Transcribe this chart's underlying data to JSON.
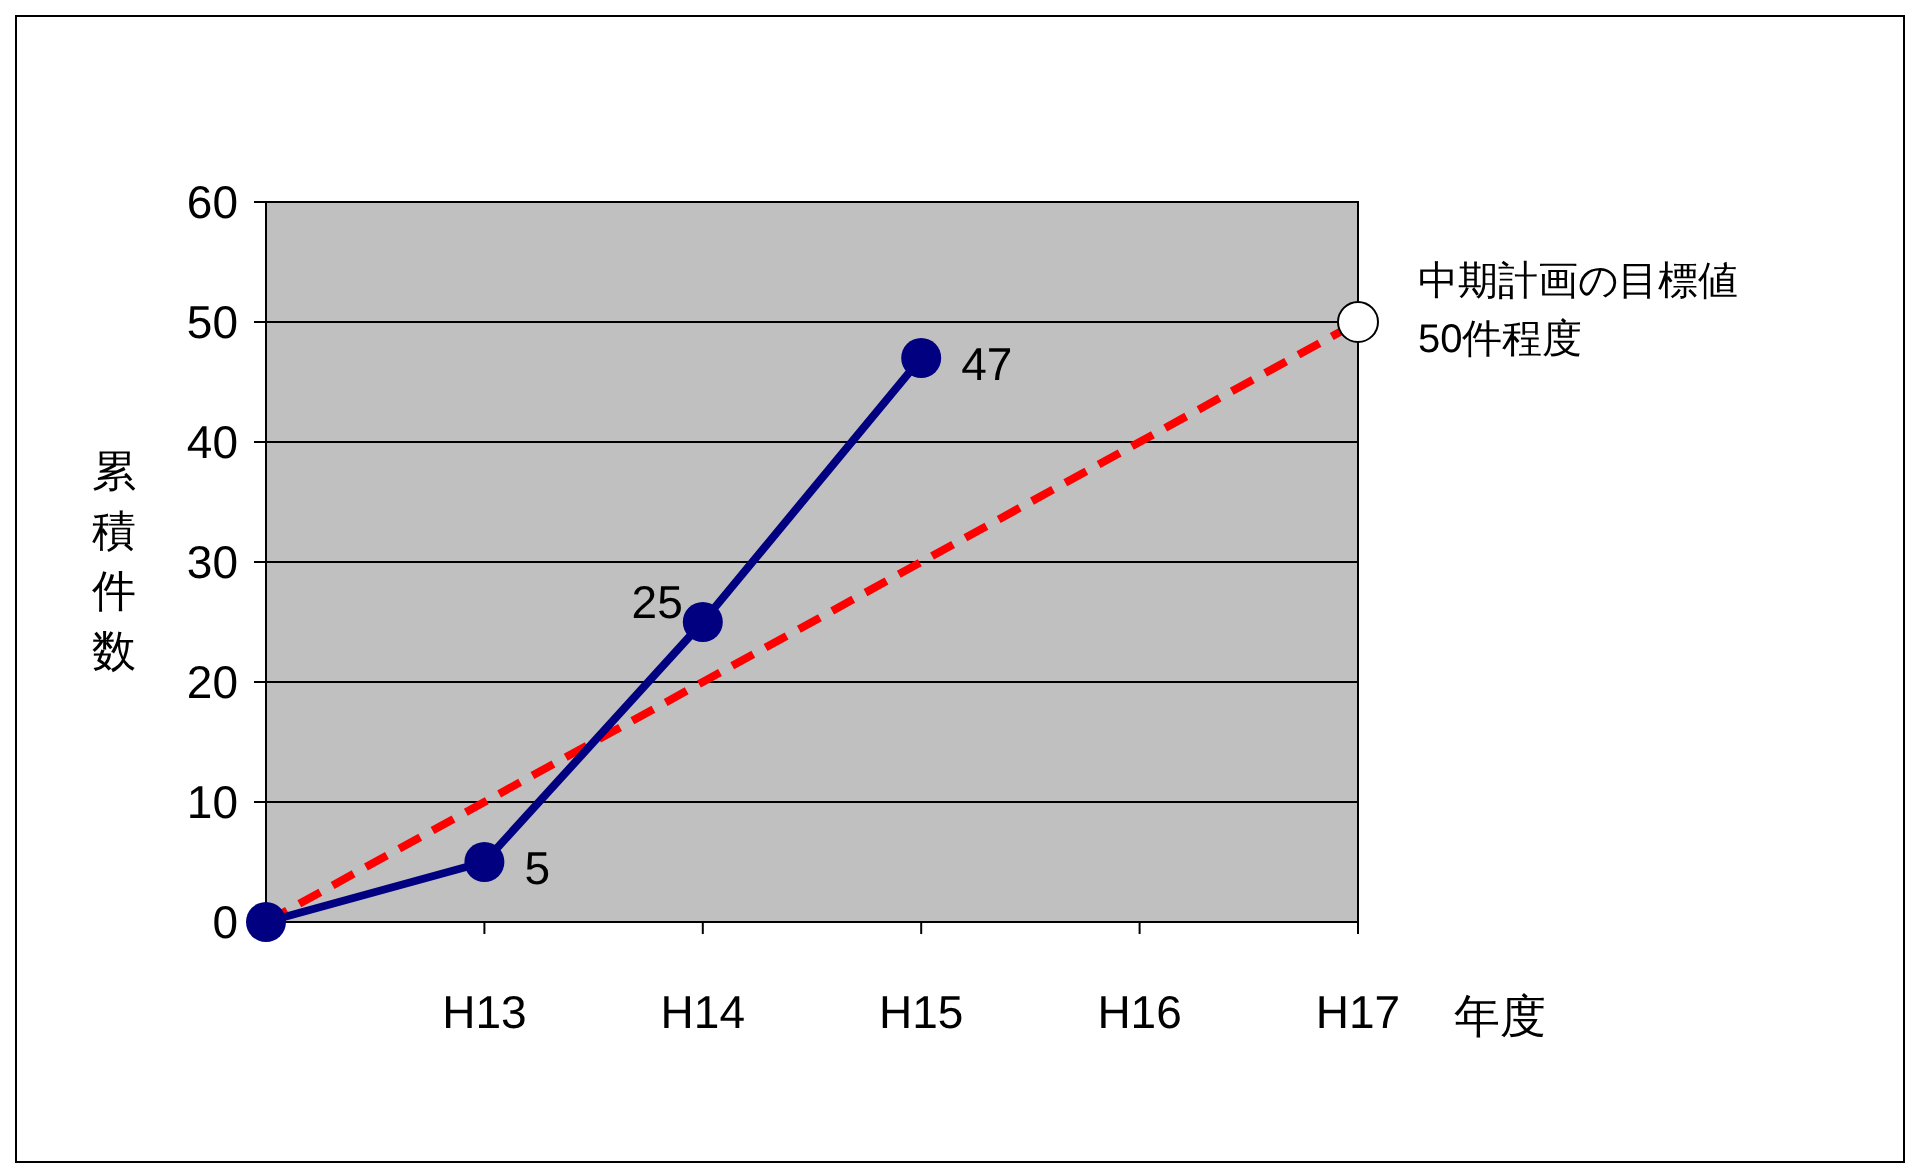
{
  "chart_data": {
    "type": "line",
    "xlabel": "年度",
    "ylabel": "累積件数",
    "categories": [
      null,
      "H13",
      "H14",
      "H15",
      "H16",
      "H17"
    ],
    "series": [
      {
        "color": "#000080",
        "values": [
          0,
          5,
          25,
          47,
          null,
          null
        ],
        "marker": "circle",
        "line_style": "solid",
        "value_labels": [
          null,
          "5",
          "25",
          "47",
          null,
          null
        ]
      },
      {
        "color": "#ff0000",
        "values": [
          0,
          10,
          20,
          30,
          40,
          50
        ],
        "marker": "none",
        "line_style": "dashed"
      }
    ],
    "ylim": [
      0,
      60
    ],
    "yticks": [
      0,
      10,
      20,
      30,
      40,
      50,
      60
    ],
    "grid": "y",
    "annotations": [
      {
        "text": "中期計画の目標値\n50件程度",
        "x": "H17",
        "y": 50
      }
    ]
  }
}
